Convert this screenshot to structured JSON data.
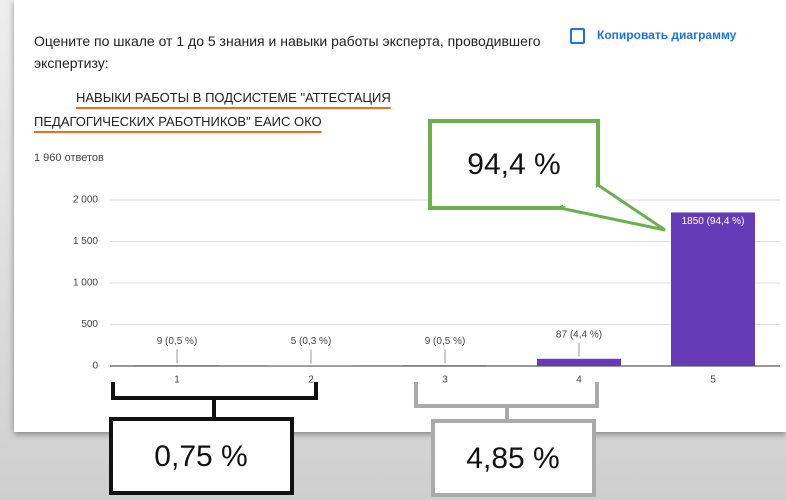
{
  "chart_data": {
    "type": "bar",
    "title": "Оцените по шкале от 1 до 5 знания и навыки работы эксперта, проводившего экспертизу:",
    "subtitle": "НАВЫКИ РАБОТЫ В ПОДСИСТЕМЕ \"АТТЕСТАЦИЯ ПЕДАГОГИЧЕСКИХ РАБОТНИКОВ\" ЕАИС ОКО",
    "responses": "1 960 ответов",
    "copy_button": "Копировать диаграмму",
    "categories": [
      "1",
      "2",
      "3",
      "4",
      "5"
    ],
    "values": [
      9,
      5,
      9,
      87,
      1850
    ],
    "value_labels": [
      "9 (0,5 %)",
      "5 (0,3 %)",
      "9 (0,5 %)",
      "87 (4,4 %)",
      "1850 (94,4 %)"
    ],
    "color": "#673ab7",
    "ylim": [
      0,
      2000
    ],
    "yticks": [
      0,
      500,
      {
        "value": 1000,
        "label": "1 000"
      },
      {
        "value": 1500,
        "label": "1 500"
      },
      {
        "value": 2000,
        "label": "2 000"
      }
    ],
    "grid": true,
    "annotations": [
      "94,4 %",
      "0,75 %",
      "4,85 %"
    ]
  }
}
